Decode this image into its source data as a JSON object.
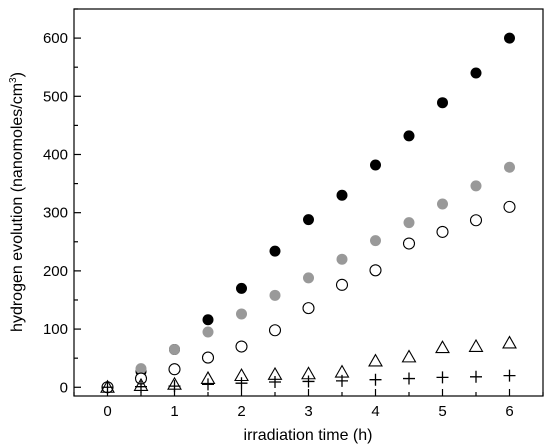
{
  "chart_data": {
    "type": "scatter",
    "xlabel": "irradiation time (h)",
    "ylabel": {
      "text": "hydrogen evolution (nanomoles/cm",
      "sup": "3",
      "close": ")"
    },
    "xlim": [
      -0.5,
      6.5
    ],
    "ylim": [
      -15,
      650
    ],
    "xticks": [
      0,
      1,
      2,
      3,
      4,
      5,
      6
    ],
    "yticks": [
      0,
      100,
      200,
      300,
      400,
      500,
      600
    ],
    "grid": false,
    "legend": "none",
    "series": [
      {
        "marker": "filled-circle",
        "color": "#000000",
        "x": [
          0,
          0.5,
          1,
          1.5,
          2,
          2.5,
          3,
          3.5,
          4,
          4.5,
          5,
          5.5,
          6
        ],
        "y": [
          0,
          27,
          65,
          116,
          170,
          234,
          288,
          330,
          382,
          432,
          489,
          540,
          600
        ]
      },
      {
        "marker": "filled-circle",
        "color": "#999999",
        "x": [
          0,
          0.5,
          1,
          1.5,
          2,
          2.5,
          3,
          3.5,
          4,
          4.5,
          5,
          5.5,
          6
        ],
        "y": [
          0,
          32,
          65,
          95,
          126,
          158,
          188,
          220,
          252,
          283,
          315,
          346,
          378
        ]
      },
      {
        "marker": "open-circle",
        "color": "#000000",
        "x": [
          0,
          0.5,
          1,
          1.5,
          2,
          2.5,
          3,
          3.5,
          4,
          4.5,
          5,
          5.5,
          6
        ],
        "y": [
          0,
          15,
          31,
          51,
          70,
          98,
          136,
          176,
          201,
          247,
          267,
          287,
          310
        ]
      },
      {
        "marker": "open-triangle",
        "color": "#000000",
        "x": [
          0,
          0.5,
          1,
          1.5,
          2,
          2.5,
          3,
          3.5,
          4,
          4.5,
          5,
          5.5,
          6
        ],
        "y": [
          0,
          3,
          5,
          15,
          20,
          22,
          23,
          26,
          45,
          52,
          68,
          70,
          76
        ]
      },
      {
        "marker": "plus",
        "color": "#000000",
        "x": [
          0,
          0.5,
          1,
          1.5,
          2,
          2.5,
          3,
          3.5,
          4,
          4.5,
          5,
          5.5,
          6
        ],
        "y": [
          0,
          1,
          2,
          5,
          7,
          9,
          10,
          11,
          13,
          15,
          17,
          18,
          20
        ]
      }
    ]
  }
}
